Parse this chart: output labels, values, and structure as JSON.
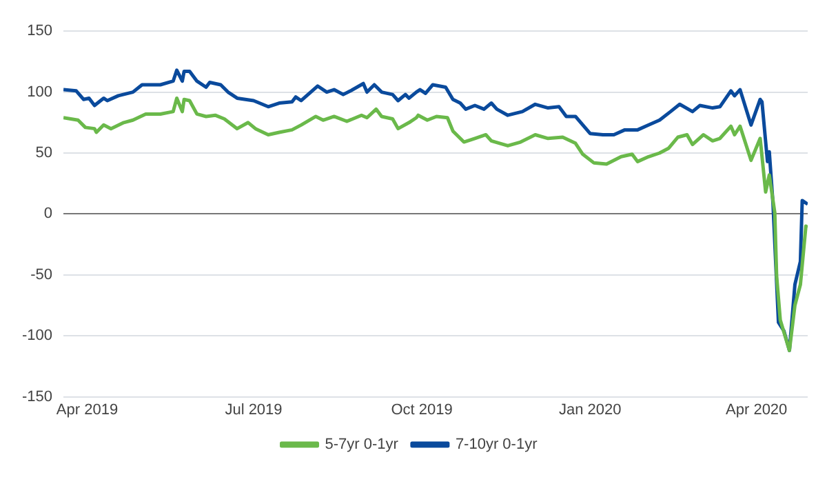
{
  "chart_data": {
    "type": "line",
    "xlim": [
      "2019-03-19",
      "2020-04-29"
    ],
    "xticks": [
      {
        "value": "2019-04-01",
        "label": "Apr 2019"
      },
      {
        "value": "2019-07-01",
        "label": "Jul 2019"
      },
      {
        "value": "2019-10-01",
        "label": "Oct 2019"
      },
      {
        "value": "2020-01-01",
        "label": "Jan 2020"
      },
      {
        "value": "2020-04-01",
        "label": "Apr 2020"
      }
    ],
    "ylim": [
      -150,
      150
    ],
    "yticks": [
      -150,
      -100,
      -50,
      0,
      50,
      100,
      150
    ],
    "grid": "y",
    "legend": "bottom",
    "marker": "none",
    "line_style": "solid",
    "series": [
      {
        "name": "5-7yr 0-1yr",
        "color": "#6ab94a",
        "x": [
          "2019-03-19",
          "2019-03-27",
          "2019-03-31",
          "2019-04-05",
          "2019-04-06",
          "2019-04-10",
          "2019-04-14",
          "2019-04-21",
          "2019-04-26",
          "2019-05-03",
          "2019-05-11",
          "2019-05-18",
          "2019-05-20",
          "2019-05-23",
          "2019-05-24",
          "2019-05-27",
          "2019-05-31",
          "2019-06-05",
          "2019-06-10",
          "2019-06-15",
          "2019-06-22",
          "2019-06-28",
          "2019-07-02",
          "2019-07-09",
          "2019-07-15",
          "2019-07-22",
          "2019-07-27",
          "2019-08-04",
          "2019-08-08",
          "2019-08-14",
          "2019-08-21",
          "2019-08-29",
          "2019-09-01",
          "2019-09-06",
          "2019-09-09",
          "2019-09-15",
          "2019-09-18",
          "2019-09-24",
          "2019-09-28",
          "2019-09-29",
          "2019-10-04",
          "2019-10-09",
          "2019-10-15",
          "2019-10-18",
          "2019-10-24",
          "2019-10-30",
          "2019-11-05",
          "2019-11-08",
          "2019-11-17",
          "2019-11-24",
          "2019-12-02",
          "2019-12-09",
          "2019-12-17",
          "2019-12-24",
          "2019-12-28",
          "2020-01-03",
          "2020-01-10",
          "2020-01-18",
          "2020-01-24",
          "2020-01-27",
          "2020-02-02",
          "2020-02-08",
          "2020-02-13",
          "2020-02-18",
          "2020-02-23",
          "2020-02-26",
          "2020-03-03",
          "2020-03-08",
          "2020-03-12",
          "2020-03-18",
          "2020-03-20",
          "2020-03-23",
          "2020-03-29",
          "2020-04-03",
          "2020-04-06",
          "2020-04-08",
          "2020-04-11",
          "2020-04-12",
          "2020-04-14",
          "2020-04-19",
          "2020-04-22",
          "2020-04-25",
          "2020-04-28",
          "2020-04-29"
        ],
        "values": [
          79,
          77,
          71,
          70,
          67,
          73,
          70,
          75,
          77,
          82,
          82,
          84,
          95,
          84,
          94,
          93,
          82,
          80,
          81,
          78,
          70,
          75,
          70,
          65,
          67,
          69,
          73,
          80,
          77,
          80,
          76,
          81,
          79,
          86,
          80,
          78,
          70,
          75,
          79,
          81,
          77,
          80,
          79,
          68,
          59,
          62,
          65,
          60,
          56,
          59,
          65,
          62,
          63,
          58,
          49,
          42,
          41,
          47,
          49,
          43,
          47,
          50,
          54,
          63,
          65,
          57,
          65,
          60,
          62,
          72,
          65,
          72,
          44,
          62,
          18,
          32,
          1,
          -51,
          -87,
          -112,
          -75,
          -58,
          -10,
          -11
        ]
      },
      {
        "name": "7-10yr 0-1yr",
        "color": "#0a4a9c",
        "x": [
          "2019-03-19",
          "2019-03-26",
          "2019-03-30",
          "2019-04-02",
          "2019-04-05",
          "2019-04-10",
          "2019-04-12",
          "2019-04-18",
          "2019-04-26",
          "2019-05-01",
          "2019-05-11",
          "2019-05-18",
          "2019-05-20",
          "2019-05-23",
          "2019-05-24",
          "2019-05-27",
          "2019-05-31",
          "2019-06-05",
          "2019-06-07",
          "2019-06-13",
          "2019-06-17",
          "2019-06-22",
          "2019-07-01",
          "2019-07-09",
          "2019-07-15",
          "2019-07-22",
          "2019-07-24",
          "2019-07-27",
          "2019-08-05",
          "2019-08-10",
          "2019-08-14",
          "2019-08-19",
          "2019-08-23",
          "2019-08-30",
          "2019-09-01",
          "2019-09-05",
          "2019-09-09",
          "2019-09-15",
          "2019-09-18",
          "2019-09-22",
          "2019-09-24",
          "2019-09-28",
          "2019-09-30",
          "2019-10-03",
          "2019-10-07",
          "2019-10-14",
          "2019-10-18",
          "2019-10-22",
          "2019-10-25",
          "2019-10-30",
          "2019-11-04",
          "2019-11-08",
          "2019-11-11",
          "2019-11-17",
          "2019-11-25",
          "2019-12-02",
          "2019-12-09",
          "2019-12-15",
          "2019-12-19",
          "2019-12-24",
          "2020-01-01",
          "2020-01-08",
          "2020-01-14",
          "2020-01-20",
          "2020-01-27",
          "2020-02-02",
          "2020-02-08",
          "2020-02-14",
          "2020-02-19",
          "2020-02-26",
          "2020-03-01",
          "2020-03-08",
          "2020-03-12",
          "2020-03-18",
          "2020-03-20",
          "2020-03-23",
          "2020-03-29",
          "2020-04-03",
          "2020-04-04",
          "2020-04-07",
          "2020-04-08",
          "2020-04-10",
          "2020-04-13",
          "2020-04-16",
          "2020-04-19",
          "2020-04-22",
          "2020-04-25",
          "2020-04-26",
          "2020-04-29"
        ],
        "values": [
          102,
          101,
          94,
          95,
          89,
          95,
          93,
          97,
          100,
          106,
          106,
          109,
          118,
          109,
          117,
          117,
          109,
          104,
          108,
          106,
          100,
          95,
          93,
          88,
          91,
          92,
          96,
          93,
          105,
          100,
          102,
          98,
          101,
          107,
          100,
          106,
          100,
          98,
          93,
          98,
          95,
          100,
          102,
          99,
          106,
          104,
          94,
          91,
          86,
          89,
          86,
          91,
          86,
          81,
          84,
          90,
          87,
          88,
          80,
          80,
          66,
          65,
          65,
          69,
          69,
          73,
          77,
          84,
          90,
          84,
          89,
          87,
          88,
          101,
          97,
          102,
          73,
          94,
          92,
          43,
          51,
          9,
          -89,
          -96,
          -112,
          -58,
          -39,
          11,
          8
        ]
      }
    ]
  }
}
